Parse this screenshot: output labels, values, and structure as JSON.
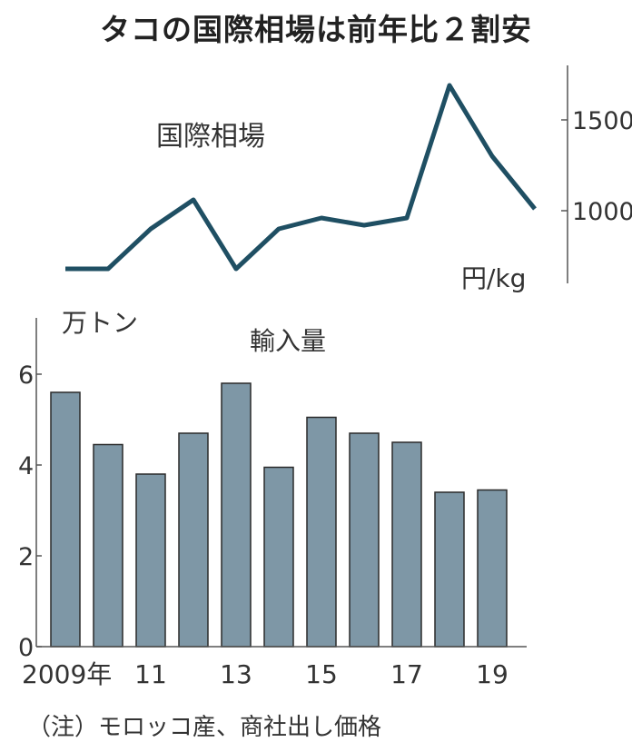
{
  "title": "タコの国際相場は前年比２割安",
  "note": "（注）モロッコ産、商社出し価格",
  "chart_data": [
    {
      "type": "line",
      "series_label": "国際相場",
      "unit": "円/kg",
      "x": [
        2009,
        2010,
        2011,
        2012,
        2013,
        2014,
        2015,
        2016,
        2017,
        2018,
        2019,
        2020
      ],
      "values": [
        680,
        680,
        900,
        1060,
        680,
        900,
        960,
        920,
        960,
        1690,
        1300,
        1010
      ],
      "y_ticks": [
        1000,
        1500
      ],
      "ylim": [
        600,
        1800
      ]
    },
    {
      "type": "bar",
      "series_label": "輸入量",
      "unit": "万トン",
      "categories": [
        "2009",
        "2010",
        "2011",
        "2012",
        "2013",
        "2014",
        "2015",
        "2016",
        "2017",
        "2018",
        "2019"
      ],
      "x_tick_labels": [
        "2009年",
        "11",
        "13",
        "15",
        "17",
        "19"
      ],
      "values": [
        5.6,
        4.45,
        3.8,
        4.7,
        5.8,
        3.95,
        5.05,
        4.7,
        4.5,
        3.4,
        3.45
      ],
      "y_ticks": [
        0,
        2,
        4,
        6
      ],
      "ylim": [
        0,
        7.2
      ]
    }
  ]
}
